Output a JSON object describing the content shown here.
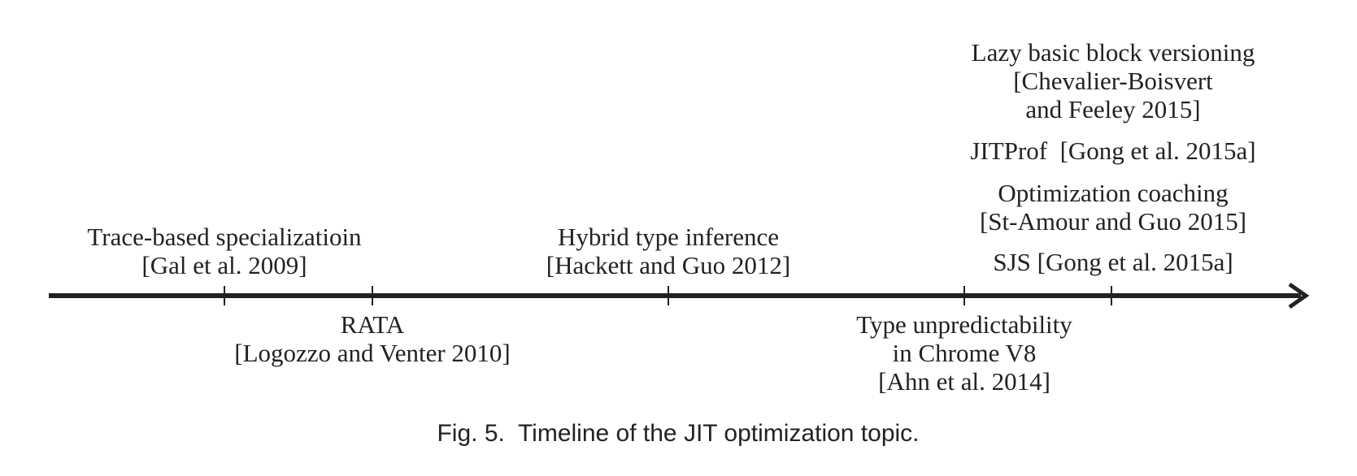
{
  "events": [
    {
      "lines": [
        "Trace-based specializatioin",
        "[Gal et al. 2009]"
      ]
    },
    {
      "lines": [
        "RATA",
        "[Logozzo and Venter 2010]"
      ]
    },
    {
      "lines": [
        "Hybrid type inference",
        "[Hackett and Guo 2012]"
      ]
    },
    {
      "lines": [
        "Type unpredictability",
        "in Chrome V8",
        "[Ahn et al. 2014]"
      ]
    },
    {
      "lines": [
        "Lazy basic block versioning",
        "[Chevalier-Boisvert",
        "and Feeley 2015]"
      ]
    },
    {
      "lines": [
        "JITProf  [Gong et al. 2015a]"
      ]
    },
    {
      "lines": [
        "Optimization coaching",
        "[St-Amour and Guo 2015]"
      ]
    },
    {
      "lines": [
        "SJS [Gong et al. 2015a]"
      ]
    }
  ],
  "caption": "Fig. 5.  Timeline of the JIT optimization topic."
}
